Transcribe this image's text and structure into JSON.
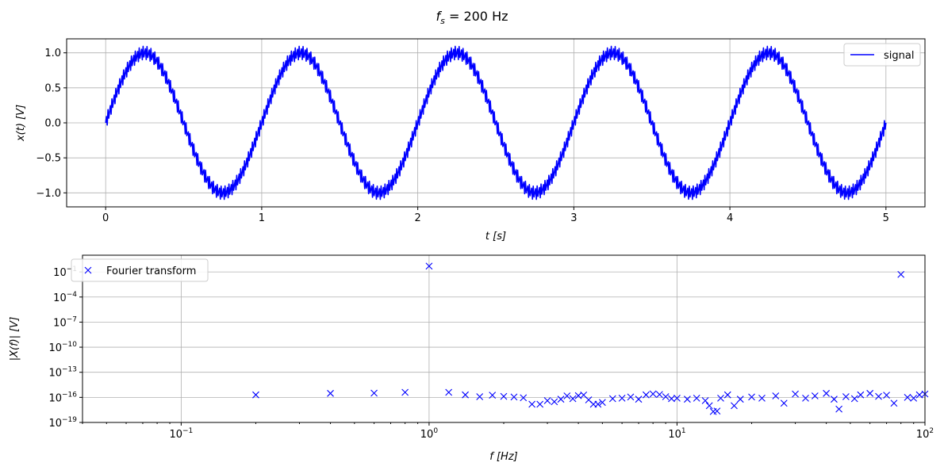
{
  "figure": {
    "suptitle": "f_s = 200 Hz",
    "suptitle_parts": {
      "f": "f",
      "sub": "s",
      "rest": " = 200 Hz"
    }
  },
  "colors": {
    "series": "#0000ff",
    "grid": "#b0b0b0",
    "axes": "#000000"
  },
  "chart_data": [
    {
      "type": "line",
      "xlabel": "t [s]",
      "ylabel": "x(t) [V]",
      "xlim": [
        -0.25,
        5.25
      ],
      "ylim": [
        -1.2,
        1.2
      ],
      "grid": true,
      "legend": {
        "placement": "top-right",
        "entries": [
          "signal"
        ]
      },
      "xticks": [
        0,
        1,
        2,
        3,
        4,
        5
      ],
      "xtick_labels": [
        "0",
        "1",
        "2",
        "3",
        "4",
        "5"
      ],
      "yticks": [
        -1.0,
        -0.5,
        0.0,
        0.5,
        1.0
      ],
      "ytick_labels": [
        "−1.0",
        "−0.5",
        "0.0",
        "0.5",
        "1.0"
      ],
      "series": [
        {
          "name": "signal",
          "t_start": 0,
          "t_end": 5,
          "sample_rate_hz": 200,
          "components": [
            {
              "frequency_hz": 1,
              "amplitude_v": 1.0
            },
            {
              "frequency_hz": 80,
              "amplitude_v": 0.1
            }
          ]
        }
      ]
    },
    {
      "type": "scatter",
      "xscale": "log",
      "yscale": "log",
      "xlabel": "f [Hz]",
      "ylabel": "|X(f)| [V]",
      "xlim": [
        0.04,
        100
      ],
      "ylim": [
        1e-19,
        10.0
      ],
      "grid": true,
      "legend": {
        "placement": "top-left",
        "entries": [
          "Fourier transform"
        ]
      },
      "xticks": [
        0.1,
        1,
        10,
        100
      ],
      "xtick_labels": [
        {
          "base": "10",
          "exp": "−1"
        },
        {
          "base": "10",
          "exp": "0"
        },
        {
          "base": "10",
          "exp": "1"
        },
        {
          "base": "10",
          "exp": "2"
        }
      ],
      "yticks": [
        1e-19,
        1e-16,
        1e-13,
        1e-10,
        1e-07,
        0.0001,
        0.1
      ],
      "ytick_labels": [
        {
          "base": "10",
          "exp": "−19"
        },
        {
          "base": "10",
          "exp": "−16"
        },
        {
          "base": "10",
          "exp": "−13"
        },
        {
          "base": "10",
          "exp": "−10"
        },
        {
          "base": "10",
          "exp": "−7"
        },
        {
          "base": "10",
          "exp": "−4"
        },
        {
          "base": "10",
          "exp": "−1"
        }
      ],
      "marker": "x",
      "series": [
        {
          "name": "Fourier transform",
          "points": [
            [
              0.2,
              2e-16
            ],
            [
              0.4,
              3e-16
            ],
            [
              0.6,
              3.2e-16
            ],
            [
              0.8,
              4e-16
            ],
            [
              1.0,
              0.5
            ],
            [
              1.2,
              4e-16
            ],
            [
              1.4,
              2e-16
            ],
            [
              1.6,
              1.2e-16
            ],
            [
              1.8,
              1.8e-16
            ],
            [
              2.0,
              1.3e-16
            ],
            [
              2.2,
              1.1e-16
            ],
            [
              2.4,
              9e-17
            ],
            [
              2.6,
              1.5e-17
            ],
            [
              2.8,
              1.5e-17
            ],
            [
              3.0,
              4e-17
            ],
            [
              3.2,
              3e-17
            ],
            [
              3.4,
              6e-17
            ],
            [
              3.6,
              1.5e-16
            ],
            [
              3.8,
              7e-17
            ],
            [
              4.0,
              1.6e-16
            ],
            [
              4.2,
              1.9e-16
            ],
            [
              4.4,
              5e-17
            ],
            [
              4.6,
              1.5e-17
            ],
            [
              4.8,
              1.5e-17
            ],
            [
              5.0,
              2.5e-17
            ],
            [
              5.5,
              7e-17
            ],
            [
              6.0,
              8e-17
            ],
            [
              6.5,
              1.1e-16
            ],
            [
              7.0,
              6e-17
            ],
            [
              7.5,
              2e-16
            ],
            [
              8.0,
              2.6e-16
            ],
            [
              8.5,
              2.2e-16
            ],
            [
              9.0,
              1.2e-16
            ],
            [
              9.5,
              7e-17
            ],
            [
              10,
              8e-17
            ],
            [
              11,
              6e-17
            ],
            [
              12,
              8e-17
            ],
            [
              13,
              4e-17
            ],
            [
              13.5,
              1e-17
            ],
            [
              14,
              2e-18
            ],
            [
              14.5,
              2.3e-18
            ],
            [
              15,
              8e-17
            ],
            [
              16,
              2e-16
            ],
            [
              17,
              1e-17
            ],
            [
              18,
              6e-17
            ],
            [
              20,
              1.1e-16
            ],
            [
              22,
              8e-17
            ],
            [
              25,
              1.5e-16
            ],
            [
              27,
              2e-17
            ],
            [
              30,
              2.5e-16
            ],
            [
              33,
              8e-17
            ],
            [
              36,
              1.5e-16
            ],
            [
              40,
              3e-16
            ],
            [
              43,
              6e-17
            ],
            [
              45,
              4e-18
            ],
            [
              48,
              1.2e-16
            ],
            [
              52,
              7e-17
            ],
            [
              55,
              2e-16
            ],
            [
              60,
              3e-16
            ],
            [
              65,
              1.3e-16
            ],
            [
              70,
              1.8e-16
            ],
            [
              75,
              2e-17
            ],
            [
              80,
              0.05
            ],
            [
              85,
              1e-16
            ],
            [
              90,
              8e-17
            ],
            [
              95,
              2e-16
            ],
            [
              100,
              2.5e-16
            ]
          ]
        }
      ]
    }
  ]
}
